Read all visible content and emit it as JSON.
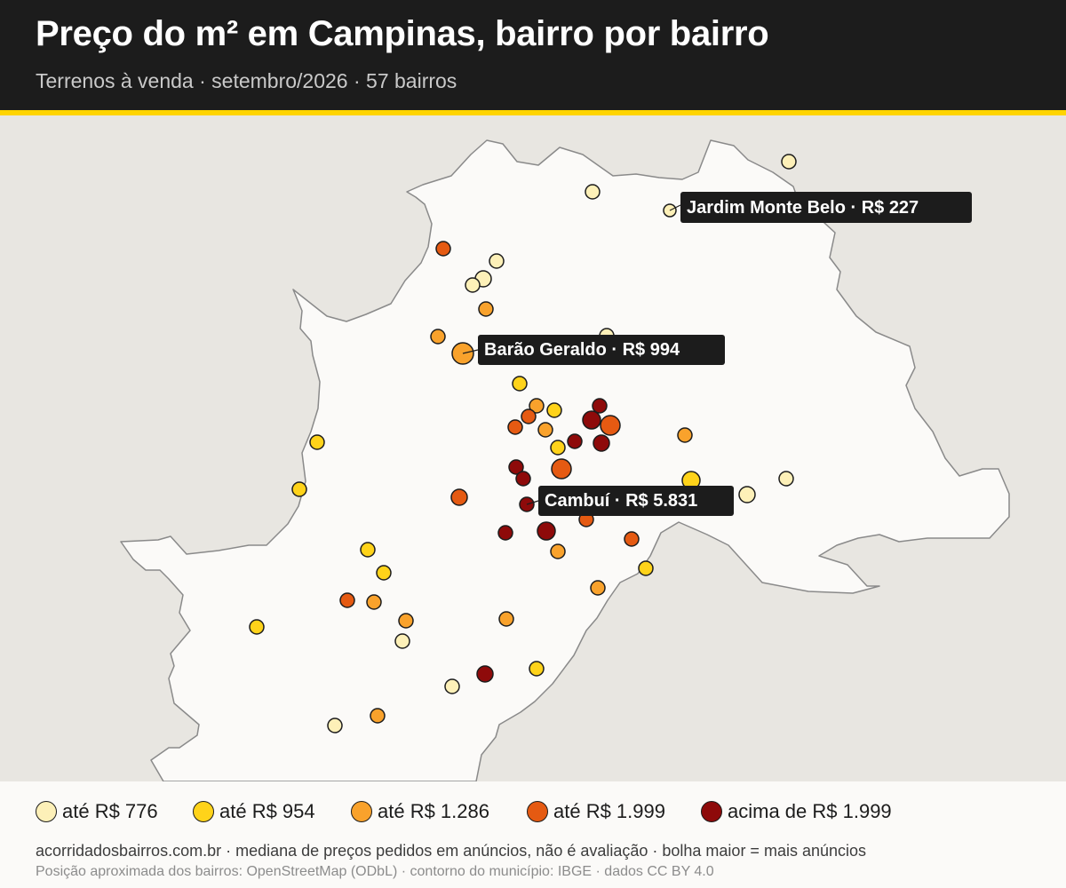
{
  "header": {
    "title": "Preço do m² em Campinas, bairro por bairro",
    "subtitle": "Terrenos à venda · setembro/2026 · 57 bairros"
  },
  "colors": {
    "header_bg": "#1c1c1c",
    "accent": "#ffd400",
    "map_bg": "#e8e6e1",
    "municipality_fill": "#fbfaf8",
    "border": "#8a8a8a"
  },
  "map": {
    "bucket_colors": [
      "#fdf0b8",
      "#ffd31a",
      "#f9a22c",
      "#e55a12",
      "#8e0a0a"
    ],
    "highlights": [
      {
        "label": "Jardim Monte Belo · R$ 227"
      },
      {
        "label": "Barão Geraldo · R$ 994"
      },
      {
        "label": "Cambuí · R$ 5.831"
      }
    ]
  },
  "legend": {
    "items": [
      {
        "label": "até R$ 776",
        "color": "#fdf0b8"
      },
      {
        "label": "até R$ 954",
        "color": "#ffd31a"
      },
      {
        "label": "até R$ 1.286",
        "color": "#f9a22c"
      },
      {
        "label": "até R$ 1.999",
        "color": "#e55a12"
      },
      {
        "label": "acima de R$ 1.999",
        "color": "#8e0a0a"
      }
    ]
  },
  "footer": {
    "line1": "acorridadosbairros.com.br · mediana de preços pedidos em anúncios, não é avaliação · bolha maior = mais anúncios",
    "line2": "Posição aproximada dos bairros: OpenStreetMap (ODbL) · contorno do município: IBGE · dados CC BY 4.0"
  }
}
